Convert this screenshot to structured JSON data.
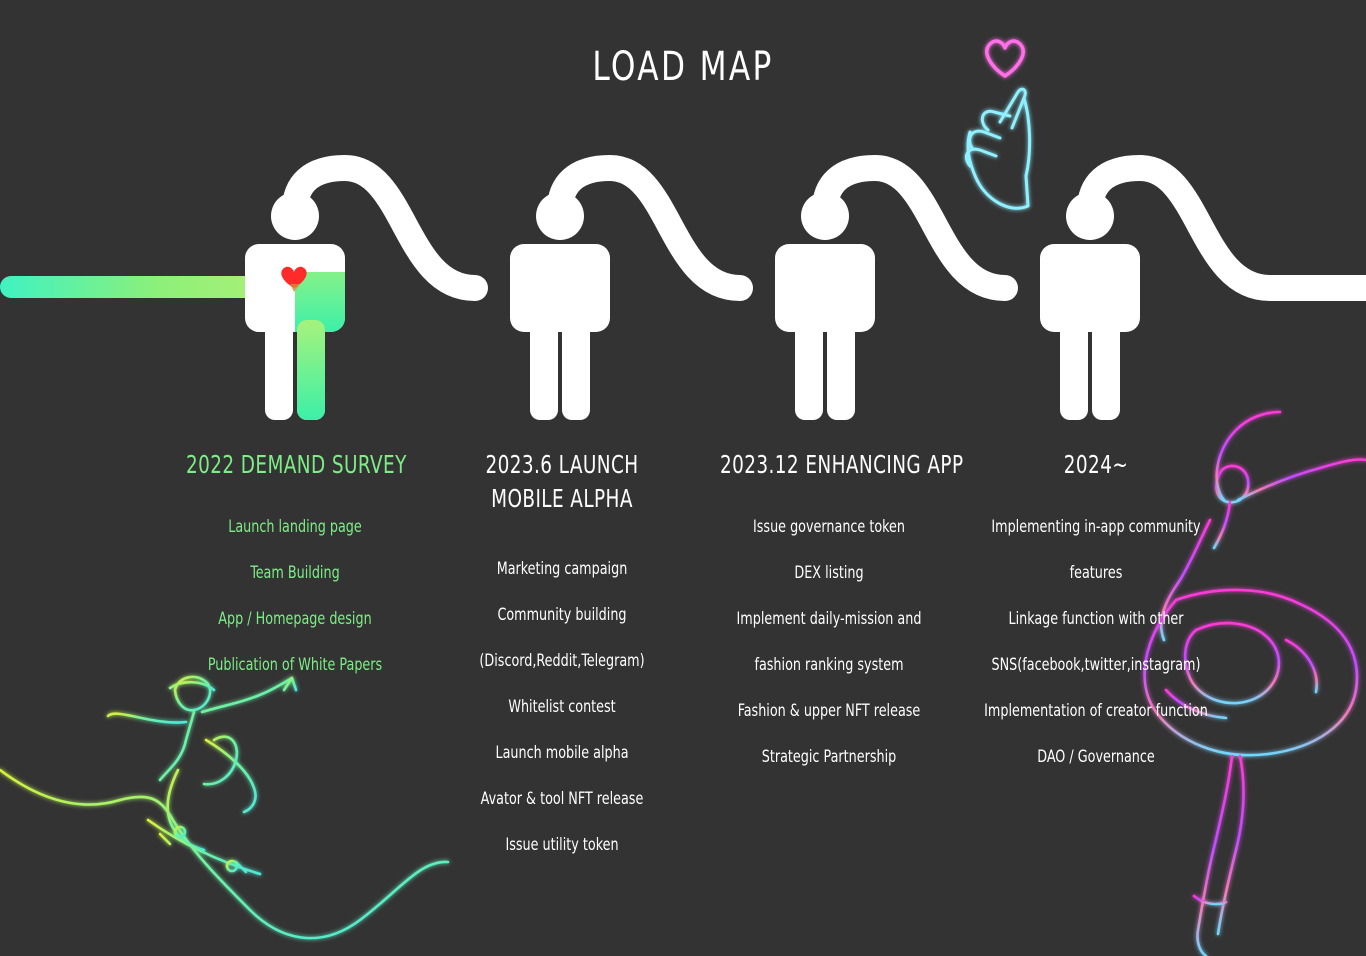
{
  "page": {
    "title": "LOAD MAP"
  },
  "colors": {
    "background": "#333333",
    "accent_green": "#7dee86",
    "path_white": "#ffffff",
    "neon_pink": "#ff4fd8",
    "neon_cyan": "#7fe9ff"
  },
  "milestones": [
    {
      "heading": "2022 DEMAND SURVEY",
      "status": "completed",
      "items": [
        "Launch landing page",
        "Team Building",
        "App / Homepage design",
        "Publication of White Papers"
      ]
    },
    {
      "heading": "2023.6 LAUNCH MOBILE ALPHA",
      "status": "upcoming",
      "items": [
        "Marketing campaign",
        "Community building",
        "(Discord,Reddit,Telegram)",
        "Whitelist contest",
        "Launch mobile alpha",
        "Avator & tool NFT release",
        "Issue utility token"
      ]
    },
    {
      "heading": "2023.12 ENHANCING APP",
      "status": "upcoming",
      "items": [
        "Issue governance token",
        "DEX listing",
        "Implement daily-mission and",
        "fashion ranking system",
        "Fashion & upper NFT release",
        "Strategic Partnership"
      ]
    },
    {
      "heading": "2024~",
      "status": "upcoming",
      "items": [
        "Implementing in-app community",
        "features",
        "Linkage function with other",
        "SNS(facebook,twitter,instagram)",
        "Implementation of creator function",
        "DAO / Governance"
      ]
    }
  ],
  "decorations": {
    "figures": [
      "person-icon",
      "person-icon",
      "person-icon",
      "person-icon"
    ],
    "heart": "heart-icon",
    "finger_heart": "finger-heart-icon",
    "skater": "skateboarder-illustration",
    "dancer": "ballerina-illustration"
  }
}
